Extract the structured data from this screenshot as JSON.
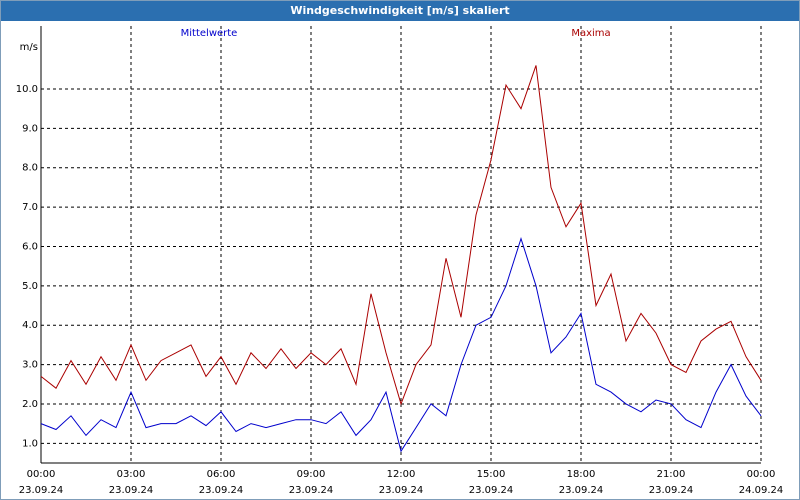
{
  "window": {
    "title": "Windgeschwindigkeit [m/s] skaliert"
  },
  "chart_data": {
    "type": "line",
    "title": "Windgeschwindigkeit [m/s] skaliert",
    "ylabel": "m/s",
    "xlabel": "",
    "ylim": [
      0.5,
      11.6
    ],
    "yticks": [
      "1.0",
      "2.0",
      "3.0",
      "4.0",
      "5.0",
      "6.0",
      "7.0",
      "8.0",
      "9.0",
      "10.0"
    ],
    "xticks": [
      {
        "time": "00:00",
        "date": "23.09.24"
      },
      {
        "time": "03:00",
        "date": "23.09.24"
      },
      {
        "time": "06:00",
        "date": "23.09.24"
      },
      {
        "time": "09:00",
        "date": "23.09.24"
      },
      {
        "time": "12:00",
        "date": "23.09.24"
      },
      {
        "time": "15:00",
        "date": "23.09.24"
      },
      {
        "time": "18:00",
        "date": "23.09.24"
      },
      {
        "time": "21:00",
        "date": "23.09.24"
      },
      {
        "time": "00:00",
        "date": "24.09.24"
      }
    ],
    "grid": true,
    "legend": "top",
    "series": [
      {
        "name": "Mittelwerte",
        "color": "#0000cc",
        "points": [
          [
            0,
            1.5
          ],
          [
            0.5,
            1.35
          ],
          [
            1,
            1.7
          ],
          [
            1.5,
            1.2
          ],
          [
            2,
            1.6
          ],
          [
            2.5,
            1.4
          ],
          [
            3,
            2.3
          ],
          [
            3.5,
            1.4
          ],
          [
            4,
            1.5
          ],
          [
            4.5,
            1.5
          ],
          [
            5,
            1.7
          ],
          [
            5.5,
            1.45
          ],
          [
            6,
            1.8
          ],
          [
            6.5,
            1.3
          ],
          [
            7,
            1.5
          ],
          [
            7.5,
            1.4
          ],
          [
            8,
            1.5
          ],
          [
            8.5,
            1.6
          ],
          [
            9,
            1.6
          ],
          [
            9.5,
            1.5
          ],
          [
            10,
            1.8
          ],
          [
            10.5,
            1.2
          ],
          [
            11,
            1.6
          ],
          [
            11.5,
            2.3
          ],
          [
            12,
            0.8
          ],
          [
            12.5,
            1.4
          ],
          [
            13,
            2.0
          ],
          [
            13.5,
            1.7
          ],
          [
            14,
            3.0
          ],
          [
            14.5,
            4.0
          ],
          [
            15,
            4.2
          ],
          [
            15.5,
            5.0
          ],
          [
            16,
            6.2
          ],
          [
            16.5,
            5.0
          ],
          [
            17,
            3.3
          ],
          [
            17.5,
            3.7
          ],
          [
            18,
            4.3
          ],
          [
            18.5,
            2.5
          ],
          [
            19,
            2.3
          ],
          [
            19.5,
            2.0
          ],
          [
            20,
            1.8
          ],
          [
            20.5,
            2.1
          ],
          [
            21,
            2.0
          ],
          [
            21.5,
            1.6
          ],
          [
            22,
            1.4
          ],
          [
            22.5,
            2.3
          ],
          [
            23,
            3.0
          ],
          [
            23.5,
            2.2
          ],
          [
            24,
            1.7
          ]
        ]
      },
      {
        "name": "Maxima",
        "color": "#aa0000",
        "points": [
          [
            0,
            2.7
          ],
          [
            0.5,
            2.4
          ],
          [
            1,
            3.1
          ],
          [
            1.5,
            2.5
          ],
          [
            2,
            3.2
          ],
          [
            2.5,
            2.6
          ],
          [
            3,
            3.5
          ],
          [
            3.5,
            2.6
          ],
          [
            4,
            3.1
          ],
          [
            4.5,
            3.3
          ],
          [
            5,
            3.5
          ],
          [
            5.5,
            2.7
          ],
          [
            6,
            3.2
          ],
          [
            6.5,
            2.5
          ],
          [
            7,
            3.3
          ],
          [
            7.5,
            2.9
          ],
          [
            8,
            3.4
          ],
          [
            8.5,
            2.9
          ],
          [
            9,
            3.3
          ],
          [
            9.5,
            3.0
          ],
          [
            10,
            3.4
          ],
          [
            10.5,
            2.5
          ],
          [
            11,
            4.8
          ],
          [
            11.5,
            3.3
          ],
          [
            12,
            2.0
          ],
          [
            12.5,
            3.0
          ],
          [
            13,
            3.5
          ],
          [
            13.5,
            5.7
          ],
          [
            14,
            4.2
          ],
          [
            14.5,
            6.8
          ],
          [
            15,
            8.2
          ],
          [
            15.5,
            10.1
          ],
          [
            16,
            9.5
          ],
          [
            16.5,
            10.6
          ],
          [
            17,
            7.5
          ],
          [
            17.5,
            6.5
          ],
          [
            18,
            7.1
          ],
          [
            18.5,
            4.5
          ],
          [
            19,
            5.3
          ],
          [
            19.5,
            3.6
          ],
          [
            20,
            4.3
          ],
          [
            20.5,
            3.8
          ],
          [
            21,
            3.0
          ],
          [
            21.5,
            2.8
          ],
          [
            22,
            3.6
          ],
          [
            22.5,
            3.9
          ],
          [
            23,
            4.1
          ],
          [
            23.5,
            3.2
          ],
          [
            24,
            2.6
          ]
        ]
      }
    ]
  }
}
